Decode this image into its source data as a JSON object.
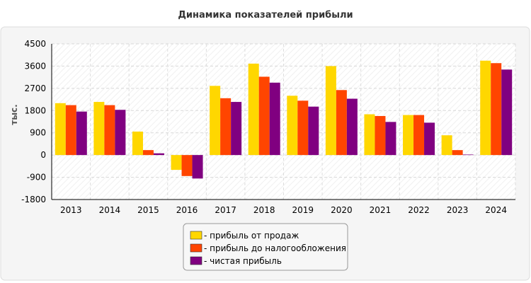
{
  "chart_data": {
    "type": "bar",
    "title": "Динамика показателей прибыли",
    "xlabel": "",
    "ylabel": "тыс.",
    "ylim": [
      -1800,
      4500
    ],
    "yticks": [
      -1800,
      -900,
      0,
      900,
      1800,
      2700,
      3600,
      4500
    ],
    "grid": true,
    "legend_position": "bottom-center",
    "categories": [
      "2013",
      "2014",
      "2015",
      "2016",
      "2017",
      "2018",
      "2019",
      "2020",
      "2021",
      "2022",
      "2023",
      "2024"
    ],
    "series": [
      {
        "name": "- прибыль от продаж",
        "color": "#FFD700",
        "values": [
          2100,
          2150,
          950,
          -600,
          2800,
          3700,
          2400,
          3600,
          1650,
          1620,
          800,
          3820
        ]
      },
      {
        "name": "- прибыль до налогообложения",
        "color": "#FF4500",
        "values": [
          2020,
          2020,
          200,
          -850,
          2300,
          3170,
          2200,
          2630,
          1580,
          1620,
          200,
          3720
        ]
      },
      {
        "name": "- чистая прибыль",
        "color": "#800080",
        "values": [
          1760,
          1830,
          70,
          -950,
          2150,
          2930,
          1960,
          2280,
          1340,
          1310,
          20,
          3460
        ]
      }
    ]
  }
}
